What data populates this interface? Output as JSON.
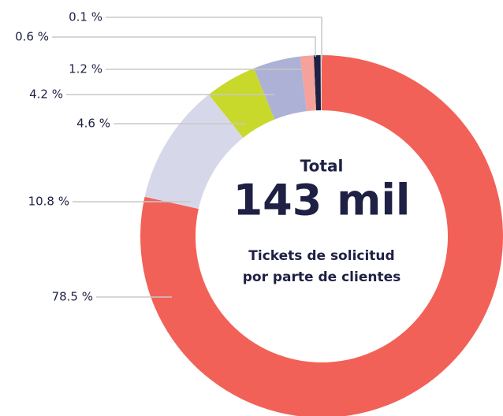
{
  "chart_data": {
    "type": "donut",
    "center_title": "Total",
    "center_value": "143 mil",
    "center_subtitle": [
      "Tickets de solicitud",
      "por parte de clientes"
    ],
    "values": [
      78.5,
      10.8,
      4.6,
      4.2,
      1.2,
      0.6,
      0.1
    ],
    "value_labels": [
      "78.5 %",
      "10.8 %",
      "4.6 %",
      "4.2 %",
      "1.2 %",
      "0.6 %",
      "0.1 %"
    ],
    "colors": [
      "#f26157",
      "#d6d8ea",
      "#c8d92c",
      "#adb1d6",
      "#f5a29c",
      "#1e2044",
      "#dcdcdc"
    ]
  }
}
